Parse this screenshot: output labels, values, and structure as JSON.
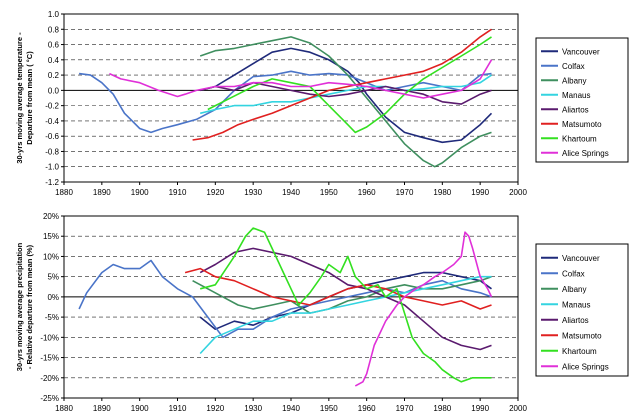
{
  "chart_data": [
    {
      "type": "line",
      "title": "",
      "xlabel": "",
      "ylabel_lines": [
        "30-yrs moving average temperature -",
        "Departure from mean ( °C)"
      ],
      "xlim": [
        1880,
        2000
      ],
      "ylim": [
        -1.2,
        1.0
      ],
      "xticks": [
        1880,
        1890,
        1900,
        1910,
        1920,
        1930,
        1940,
        1950,
        1960,
        1970,
        1980,
        1990,
        2000
      ],
      "yticks": [
        "1.0",
        "0.8",
        "0.6",
        "0.4",
        "0.2",
        "0.0",
        "-0.2",
        "-0.4",
        "-0.6",
        "-0.8",
        "-1.0",
        "-1.2"
      ],
      "ytick_values": [
        1.0,
        0.8,
        0.6,
        0.4,
        0.2,
        0.0,
        -0.2,
        -0.4,
        -0.6,
        -0.8,
        -1.0,
        -1.2
      ],
      "grid": "horizontal-dashed",
      "legend_position": "right",
      "series": [
        {
          "name": "Vancouver",
          "color": "#1f2a7a",
          "x": [
            1916,
            1920,
            1925,
            1930,
            1935,
            1940,
            1945,
            1950,
            1955,
            1958,
            1960,
            1965,
            1970,
            1975,
            1980,
            1985,
            1990,
            1993
          ],
          "y": [
            0.0,
            0.05,
            0.2,
            0.35,
            0.5,
            0.55,
            0.5,
            0.4,
            0.25,
            0.1,
            -0.05,
            -0.35,
            -0.55,
            -0.62,
            -0.68,
            -0.65,
            -0.45,
            -0.3
          ]
        },
        {
          "name": "Colfax",
          "color": "#4a74c8",
          "x": [
            1884,
            1887,
            1890,
            1893,
            1896,
            1900,
            1903,
            1906,
            1910,
            1915,
            1920,
            1925,
            1930,
            1935,
            1940,
            1945,
            1950,
            1955,
            1960,
            1965,
            1970,
            1975,
            1980,
            1985,
            1990,
            1993
          ],
          "y": [
            0.22,
            0.2,
            0.1,
            -0.05,
            -0.3,
            -0.5,
            -0.55,
            -0.5,
            -0.45,
            -0.38,
            -0.25,
            0.0,
            0.18,
            0.2,
            0.25,
            0.2,
            0.22,
            0.2,
            0.1,
            0.0,
            0.05,
            0.1,
            0.05,
            0.0,
            0.2,
            0.22
          ]
        },
        {
          "name": "Albany",
          "color": "#3f8f5f",
          "x": [
            1916,
            1920,
            1925,
            1930,
            1935,
            1940,
            1945,
            1950,
            1955,
            1960,
            1965,
            1970,
            1975,
            1978,
            1980,
            1985,
            1990,
            1993
          ],
          "y": [
            0.45,
            0.52,
            0.55,
            0.6,
            0.65,
            0.7,
            0.62,
            0.45,
            0.2,
            -0.1,
            -0.4,
            -0.7,
            -0.92,
            -1.0,
            -0.95,
            -0.75,
            -0.6,
            -0.55
          ]
        },
        {
          "name": "Manaus",
          "color": "#33d4e0",
          "x": [
            1916,
            1920,
            1925,
            1930,
            1935,
            1940,
            1945,
            1950,
            1955,
            1960,
            1965,
            1970,
            1975,
            1980,
            1985,
            1990,
            1993
          ],
          "y": [
            -0.3,
            -0.25,
            -0.2,
            -0.2,
            -0.15,
            -0.15,
            -0.1,
            -0.05,
            0.0,
            0.05,
            0.05,
            0.0,
            0.02,
            0.05,
            0.05,
            0.1,
            0.2
          ]
        },
        {
          "name": "Aliartos",
          "color": "#5a1a6e",
          "x": [
            1916,
            1920,
            1925,
            1930,
            1935,
            1940,
            1945,
            1950,
            1955,
            1960,
            1965,
            1970,
            1975,
            1980,
            1985,
            1990,
            1993
          ],
          "y": [
            0.0,
            0.05,
            0.0,
            0.1,
            0.05,
            0.0,
            -0.05,
            -0.08,
            -0.05,
            0.0,
            0.05,
            0.0,
            -0.05,
            -0.15,
            -0.18,
            -0.05,
            0.0
          ]
        },
        {
          "name": "Matsumoto",
          "color": "#e02020",
          "x": [
            1914,
            1918,
            1922,
            1926,
            1930,
            1935,
            1940,
            1945,
            1950,
            1955,
            1960,
            1965,
            1970,
            1975,
            1980,
            1985,
            1990,
            1993
          ],
          "y": [
            -0.65,
            -0.62,
            -0.55,
            -0.45,
            -0.38,
            -0.3,
            -0.2,
            -0.1,
            0.0,
            0.05,
            0.1,
            0.15,
            0.2,
            0.25,
            0.35,
            0.5,
            0.7,
            0.8
          ]
        },
        {
          "name": "Khartoum",
          "color": "#33e020",
          "x": [
            1918,
            1922,
            1926,
            1930,
            1935,
            1940,
            1945,
            1950,
            1955,
            1957,
            1960,
            1965,
            1970,
            1975,
            1980,
            1985,
            1990,
            1993
          ],
          "y": [
            -0.25,
            -0.15,
            -0.05,
            0.05,
            0.15,
            0.1,
            0.05,
            -0.2,
            -0.45,
            -0.55,
            -0.48,
            -0.3,
            -0.05,
            0.15,
            0.3,
            0.45,
            0.6,
            0.7
          ]
        },
        {
          "name": "Alice Springs",
          "color": "#e030d8",
          "x": [
            1892,
            1895,
            1900,
            1905,
            1910,
            1912,
            1915,
            1920,
            1925,
            1930,
            1935,
            1940,
            1945,
            1950,
            1955,
            1960,
            1965,
            1970,
            1975,
            1980,
            1985,
            1990,
            1993
          ],
          "y": [
            0.22,
            0.15,
            0.1,
            0.0,
            -0.08,
            -0.05,
            0.0,
            0.05,
            0.05,
            0.1,
            0.1,
            0.05,
            0.05,
            0.1,
            0.08,
            0.05,
            0.0,
            -0.05,
            -0.1,
            -0.05,
            0.0,
            0.15,
            0.4
          ]
        }
      ]
    },
    {
      "type": "line",
      "title": "",
      "xlabel": "",
      "ylabel_lines": [
        "30-yrs moving average precipitation",
        "- Relative departure from mean (%)"
      ],
      "xlim": [
        1880,
        2000
      ],
      "ylim": [
        -25,
        20
      ],
      "xticks": [
        1880,
        1890,
        1900,
        1910,
        1920,
        1930,
        1940,
        1950,
        1960,
        1970,
        1980,
        1990,
        2000
      ],
      "yticks": [
        "20%",
        "15%",
        "10%",
        "5%",
        "0%",
        "-5%",
        "-10%",
        "-15%",
        "-20%",
        "-25%"
      ],
      "ytick_values": [
        20,
        15,
        10,
        5,
        0,
        -5,
        -10,
        -15,
        -20,
        -25
      ],
      "grid": "horizontal-dashed",
      "legend_position": "right",
      "series": [
        {
          "name": "Vancouver",
          "color": "#1f2a7a",
          "x": [
            1916,
            1920,
            1925,
            1930,
            1935,
            1940,
            1945,
            1950,
            1955,
            1960,
            1965,
            1970,
            1975,
            1980,
            1985,
            1990,
            1993
          ],
          "y": [
            -5,
            -8,
            -6,
            -7,
            -5,
            -4,
            -2,
            0,
            2,
            3,
            4,
            5,
            6,
            6,
            5,
            4,
            2
          ]
        },
        {
          "name": "Colfax",
          "color": "#4a74c8",
          "x": [
            1884,
            1886,
            1890,
            1893,
            1896,
            1900,
            1903,
            1906,
            1910,
            1914,
            1918,
            1922,
            1926,
            1930,
            1935,
            1940,
            1945,
            1950,
            1955,
            1960,
            1965,
            1970,
            1975,
            1980,
            1985,
            1990,
            1993
          ],
          "y": [
            -3,
            1,
            6,
            8,
            7,
            7,
            9,
            5,
            2,
            0,
            -5,
            -10,
            -8,
            -8,
            -5,
            -3,
            -2,
            -1,
            0,
            1,
            2,
            1,
            3,
            4,
            2,
            1,
            0
          ]
        },
        {
          "name": "Albany",
          "color": "#3f8f5f",
          "x": [
            1914,
            1918,
            1922,
            1926,
            1930,
            1935,
            1940,
            1945,
            1950,
            1955,
            1960,
            1965,
            1970,
            1975,
            1980,
            1985,
            1990,
            1993
          ],
          "y": [
            4,
            2,
            0,
            -2,
            -3,
            -2,
            -1,
            -4,
            -3,
            -1,
            0,
            2,
            3,
            2,
            2,
            3,
            4,
            5
          ]
        },
        {
          "name": "Manaus",
          "color": "#33d4e0",
          "x": [
            1916,
            1920,
            1925,
            1930,
            1935,
            1940,
            1945,
            1950,
            1955,
            1960,
            1965,
            1970,
            1975,
            1980,
            1985,
            1990,
            1993
          ],
          "y": [
            -14,
            -10,
            -8,
            -6,
            -6,
            -4,
            -4,
            -3,
            -2,
            -1,
            0,
            1,
            2,
            3,
            4,
            5,
            5
          ]
        },
        {
          "name": "Aliartos",
          "color": "#5a1a6e",
          "x": [
            1916,
            1920,
            1925,
            1930,
            1935,
            1940,
            1945,
            1950,
            1955,
            1960,
            1965,
            1970,
            1975,
            1980,
            1985,
            1990,
            1993
          ],
          "y": [
            6,
            8,
            11,
            12,
            11,
            10,
            8,
            6,
            3,
            2,
            0,
            -2,
            -6,
            -10,
            -12,
            -13,
            -12
          ]
        },
        {
          "name": "Matsumoto",
          "color": "#e02020",
          "x": [
            1912,
            1916,
            1920,
            1925,
            1930,
            1935,
            1940,
            1945,
            1950,
            1955,
            1960,
            1965,
            1970,
            1975,
            1980,
            1985,
            1990,
            1993
          ],
          "y": [
            6,
            7,
            5,
            4,
            2,
            0,
            -1,
            -2,
            0,
            2,
            3,
            2,
            0,
            -1,
            -2,
            -1,
            -3,
            -2
          ]
        },
        {
          "name": "Khartoum",
          "color": "#33e020",
          "x": [
            1916,
            1920,
            1925,
            1928,
            1930,
            1933,
            1935,
            1938,
            1940,
            1942,
            1945,
            1948,
            1950,
            1953,
            1955,
            1957,
            1960,
            1963,
            1965,
            1968,
            1970,
            1972,
            1975,
            1978,
            1980,
            1983,
            1985,
            1988,
            1990,
            1993
          ],
          "y": [
            2,
            3,
            10,
            15,
            17,
            16,
            12,
            6,
            2,
            -2,
            1,
            5,
            8,
            6,
            10,
            5,
            2,
            3,
            0,
            2,
            -4,
            -10,
            -14,
            -16,
            -18,
            -20,
            -21,
            -20,
            -20,
            -20
          ]
        },
        {
          "name": "Alice Springs",
          "color": "#e030d8",
          "x": [
            1957,
            1959,
            1960,
            1962,
            1965,
            1968,
            1970,
            1973,
            1975,
            1978,
            1980,
            1983,
            1985,
            1986,
            1987,
            1988,
            1990,
            1992,
            1993
          ],
          "y": [
            -22,
            -21,
            -19,
            -12,
            -6,
            -2,
            0,
            2,
            3,
            5,
            6,
            8,
            10,
            16,
            15,
            12,
            5,
            2,
            0
          ]
        }
      ]
    }
  ]
}
